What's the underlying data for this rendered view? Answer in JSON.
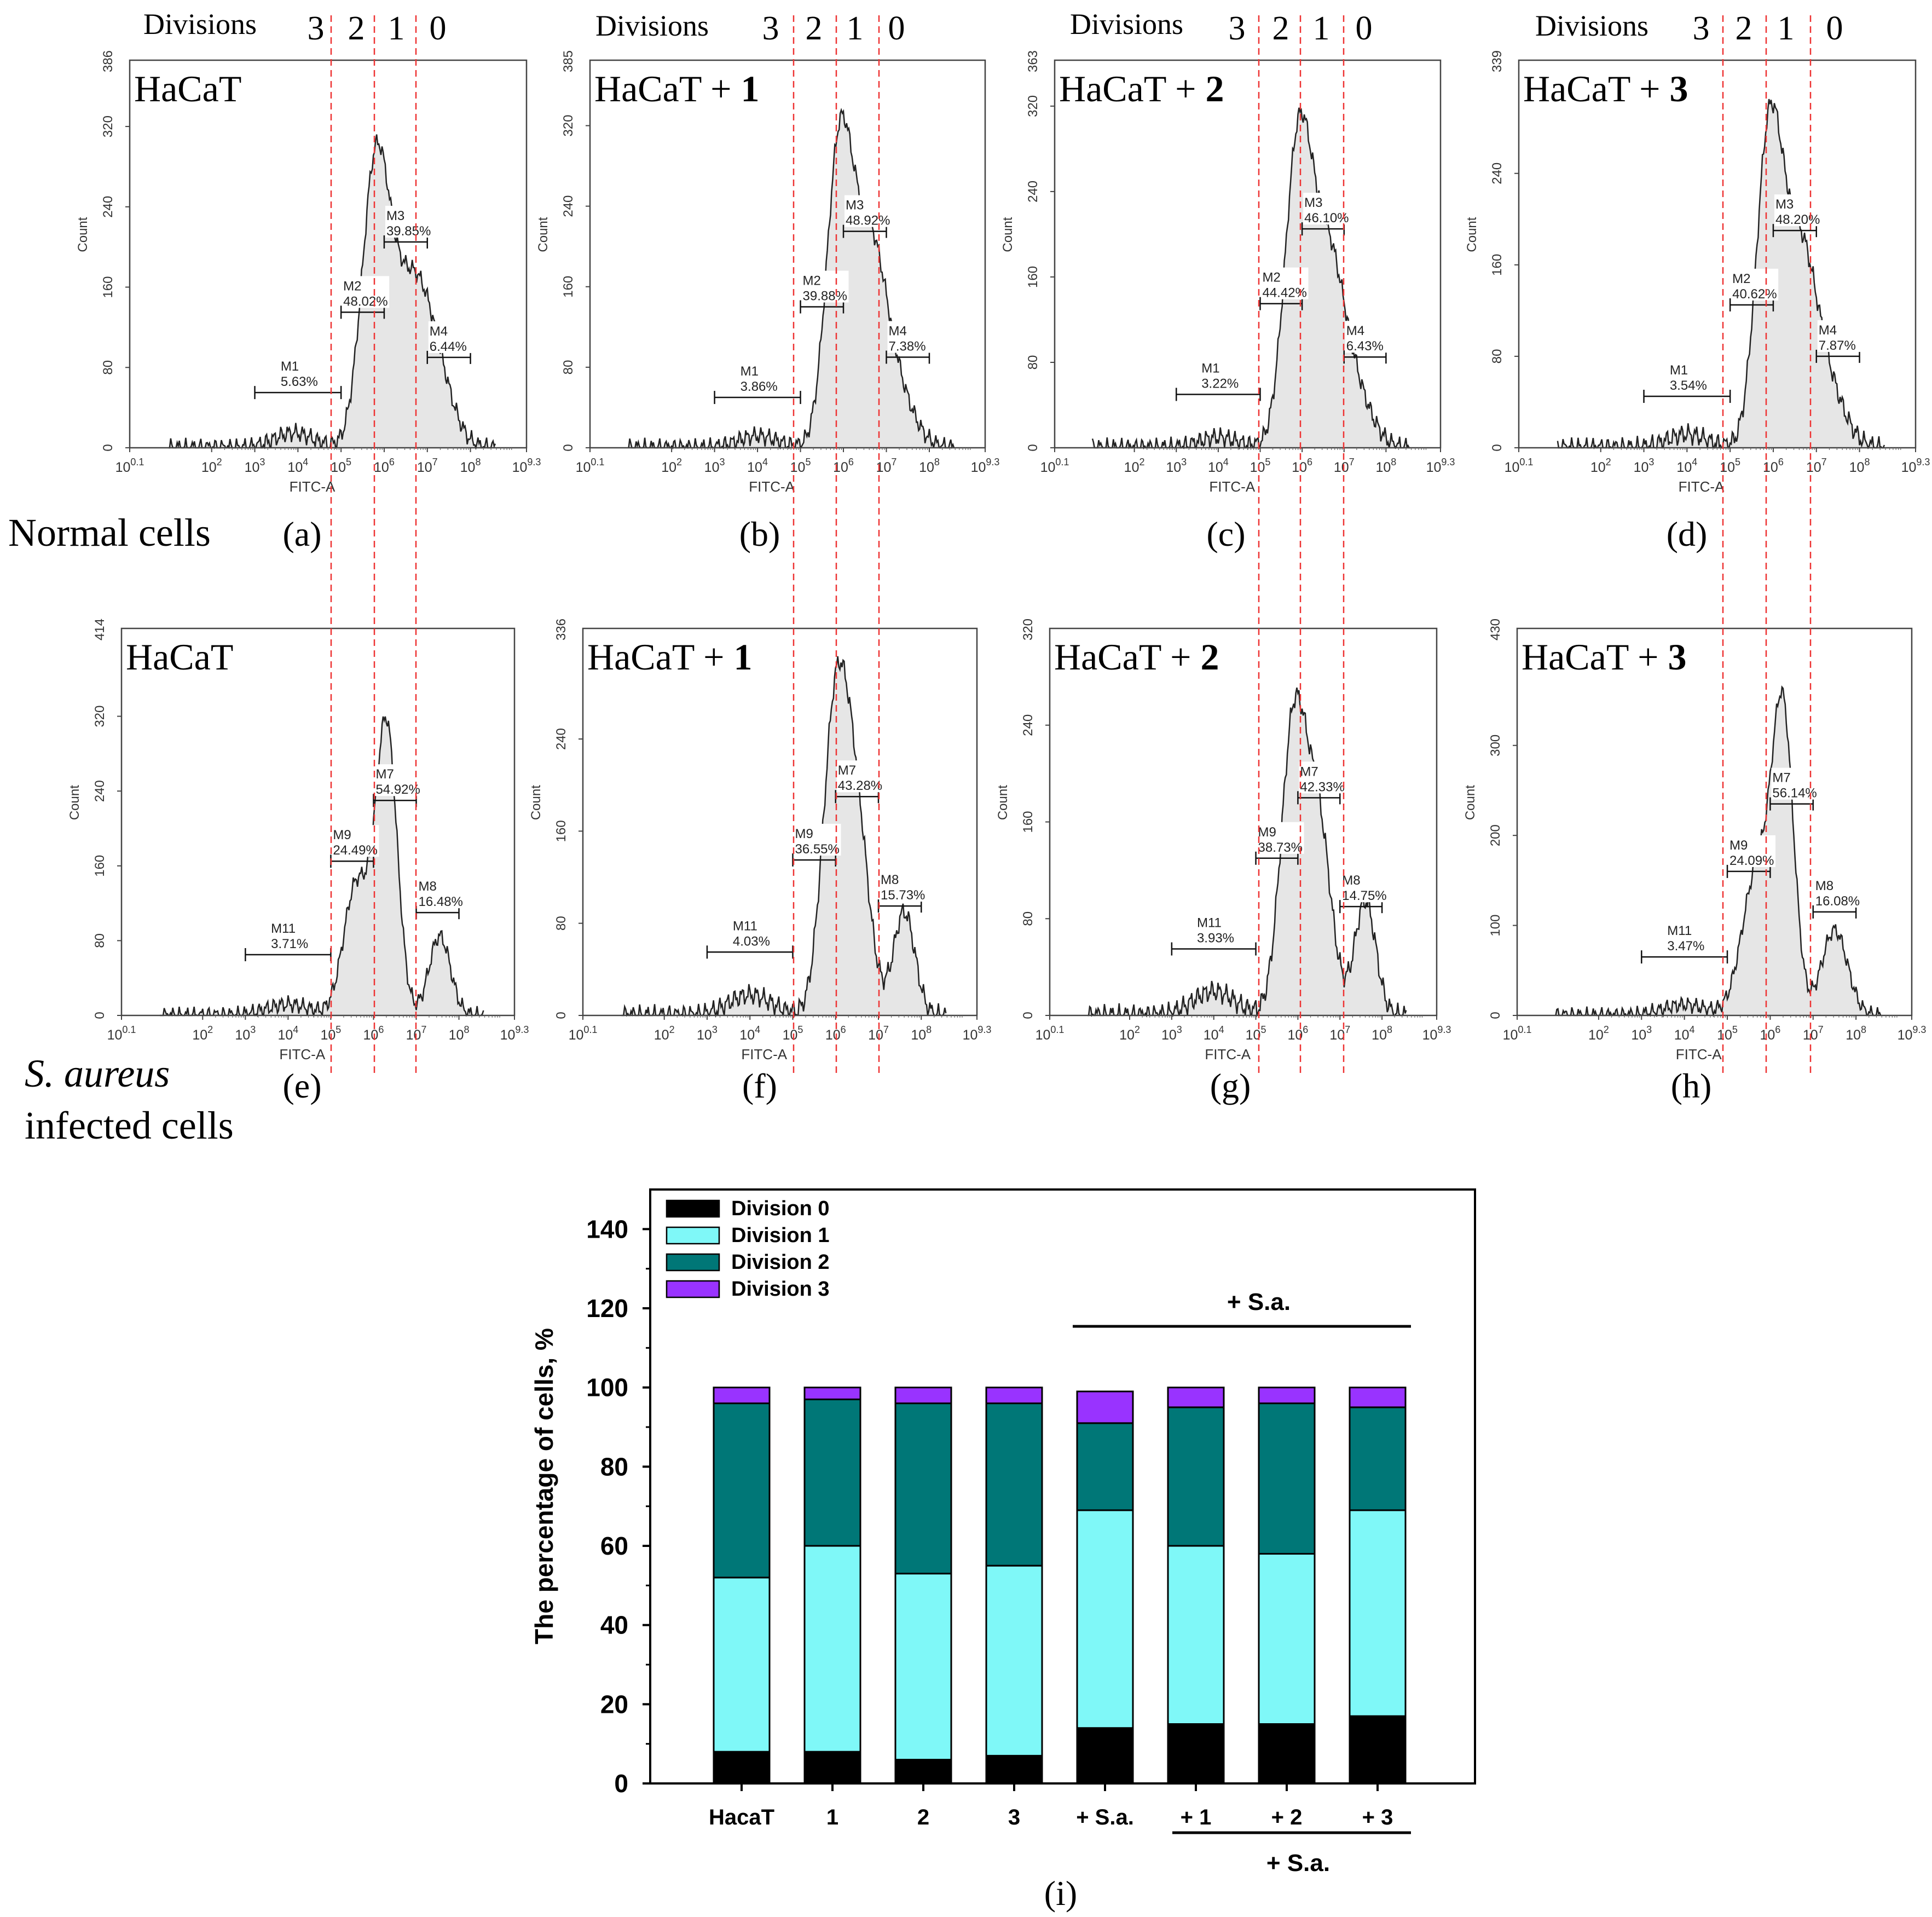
{
  "figure_labels": {
    "divisions": "Divisions",
    "division_numbers": [
      "3",
      "2",
      "1",
      "0"
    ],
    "row1_label": "Normal cells",
    "row2_label_line1": "S. aureus",
    "row2_label_line2": "infected cells"
  },
  "chart_data": [
    {
      "type": "histogram",
      "panel": "(a)",
      "title": "HaCaT",
      "title_bold": "",
      "xlabel": "FITC-A",
      "ylabel": "Count",
      "ymax": 386,
      "yticks": [
        0,
        80,
        160,
        240,
        320
      ],
      "xticks": [
        "10^0.1",
        "10^2",
        "10^3",
        "10^4",
        "10^5",
        "10^6",
        "10^7",
        "10^8",
        "10^9.3"
      ],
      "gates": [
        {
          "name": "M1",
          "pct": "5.63%",
          "from": 3,
          "to": 5,
          "y": 55
        },
        {
          "name": "M2",
          "pct": "48.02%",
          "from": 5,
          "to": 6,
          "y": 135
        },
        {
          "name": "M3",
          "pct": "39.85%",
          "from": 6,
          "to": 7,
          "y": 205
        },
        {
          "name": "M4",
          "pct": "6.44%",
          "from": 7,
          "to": 8,
          "y": 90
        }
      ],
      "peaks": [
        {
          "mu": 5.8,
          "sigma": 0.32,
          "amp": 270
        },
        {
          "mu": 6.6,
          "sigma": 0.45,
          "amp": 150
        },
        {
          "mu": 7.2,
          "sigma": 0.4,
          "amp": 55
        },
        {
          "mu": 3.9,
          "sigma": 0.45,
          "amp": 15
        }
      ]
    },
    {
      "type": "histogram",
      "panel": "(b)",
      "title": "HaCaT + ",
      "title_bold": "1",
      "xlabel": "FITC-A",
      "ylabel": "Count",
      "ymax": 385,
      "yticks": [
        0,
        80,
        160,
        240,
        320
      ],
      "xticks": [
        "10^0.1",
        "10^2",
        "10^3",
        "10^4",
        "10^5",
        "10^6",
        "10^7",
        "10^8",
        "10^9.3"
      ],
      "gates": [
        {
          "name": "M1",
          "pct": "3.86%",
          "from": 3,
          "to": 5,
          "y": 50
        },
        {
          "name": "M2",
          "pct": "39.88%",
          "from": 5,
          "to": 6,
          "y": 140
        },
        {
          "name": "M3",
          "pct": "48.92%",
          "from": 6,
          "to": 7,
          "y": 215
        },
        {
          "name": "M4",
          "pct": "7.38%",
          "from": 7,
          "to": 8,
          "y": 90
        }
      ],
      "peaks": [
        {
          "mu": 5.9,
          "sigma": 0.3,
          "amp": 280
        },
        {
          "mu": 6.6,
          "sigma": 0.4,
          "amp": 200
        },
        {
          "mu": 7.3,
          "sigma": 0.4,
          "amp": 40
        },
        {
          "mu": 4.0,
          "sigma": 0.45,
          "amp": 12
        }
      ]
    },
    {
      "type": "histogram",
      "panel": "(c)",
      "title": "HaCaT + ",
      "title_bold": "2",
      "xlabel": "FITC-A",
      "ylabel": "Count",
      "ymax": 363,
      "yticks": [
        0,
        80,
        160,
        240,
        320
      ],
      "xticks": [
        "10^0.1",
        "10^2",
        "10^3",
        "10^4",
        "10^5",
        "10^6",
        "10^7",
        "10^8",
        "10^9.3"
      ],
      "gates": [
        {
          "name": "M1",
          "pct": "3.22%",
          "from": 3,
          "to": 5,
          "y": 50
        },
        {
          "name": "M2",
          "pct": "44.42%",
          "from": 5,
          "to": 6,
          "y": 135
        },
        {
          "name": "M3",
          "pct": "46.10%",
          "from": 6,
          "to": 7,
          "y": 205
        },
        {
          "name": "M4",
          "pct": "6.43%",
          "from": 7,
          "to": 8,
          "y": 85
        }
      ],
      "peaks": [
        {
          "mu": 5.9,
          "sigma": 0.32,
          "amp": 270
        },
        {
          "mu": 6.6,
          "sigma": 0.4,
          "amp": 175
        },
        {
          "mu": 7.3,
          "sigma": 0.4,
          "amp": 40
        },
        {
          "mu": 4.0,
          "sigma": 0.45,
          "amp": 10
        }
      ]
    },
    {
      "type": "histogram",
      "panel": "(d)",
      "title": "HaCaT + ",
      "title_bold": "3",
      "xlabel": "FITC-A",
      "ylabel": "Count",
      "ymax": 339,
      "yticks": [
        0,
        80,
        160,
        240
      ],
      "xticks": [
        "10^0.1",
        "10^2",
        "10^3",
        "10^4",
        "10^5",
        "10^6",
        "10^7",
        "10^8",
        "10^9.3"
      ],
      "gates": [
        {
          "name": "M1",
          "pct": "3.54%",
          "from": 3,
          "to": 5,
          "y": 45
        },
        {
          "name": "M2",
          "pct": "40.62%",
          "from": 5,
          "to": 6,
          "y": 125
        },
        {
          "name": "M3",
          "pct": "48.20%",
          "from": 6,
          "to": 7,
          "y": 190
        },
        {
          "name": "M4",
          "pct": "7.87%",
          "from": 7,
          "to": 8,
          "y": 80
        }
      ],
      "peaks": [
        {
          "mu": 5.9,
          "sigma": 0.3,
          "amp": 260
        },
        {
          "mu": 6.6,
          "sigma": 0.4,
          "amp": 170
        },
        {
          "mu": 7.3,
          "sigma": 0.4,
          "amp": 40
        },
        {
          "mu": 4.0,
          "sigma": 0.45,
          "amp": 12
        }
      ]
    },
    {
      "type": "histogram",
      "panel": "(e)",
      "title": "HaCaT",
      "title_bold": "",
      "xlabel": "FITC-A",
      "ylabel": "Count",
      "ymax": 414,
      "yticks": [
        0,
        80,
        160,
        240,
        320
      ],
      "xticks": [
        "10^0.1",
        "10^2",
        "10^3",
        "10^4",
        "10^5",
        "10^6",
        "10^7",
        "10^8",
        "10^9.3"
      ],
      "gates": [
        {
          "name": "M11",
          "pct": "3.71%",
          "from": 3,
          "to": 5,
          "y": 65
        },
        {
          "name": "M9",
          "pct": "24.49%",
          "from": 5,
          "to": 6,
          "y": 165
        },
        {
          "name": "M7",
          "pct": "54.92%",
          "from": 6,
          "to": 7,
          "y": 230
        },
        {
          "name": "M8",
          "pct": "16.48%",
          "from": 7,
          "to": 8,
          "y": 110
        }
      ],
      "peaks": [
        {
          "mu": 6.3,
          "sigma": 0.25,
          "amp": 310
        },
        {
          "mu": 5.6,
          "sigma": 0.3,
          "amp": 140
        },
        {
          "mu": 7.55,
          "sigma": 0.25,
          "amp": 85
        },
        {
          "mu": 4.0,
          "sigma": 0.5,
          "amp": 12
        }
      ]
    },
    {
      "type": "histogram",
      "panel": "(f)",
      "title": "HaCaT + ",
      "title_bold": "1",
      "xlabel": "FITC-A",
      "ylabel": "Count",
      "ymax": 336,
      "yticks": [
        0,
        80,
        160,
        240
      ],
      "xticks": [
        "10^0.1",
        "10^2",
        "10^3",
        "10^4",
        "10^5",
        "10^6",
        "10^7",
        "10^8",
        "10^9.3"
      ],
      "gates": [
        {
          "name": "M11",
          "pct": "4.03%",
          "from": 3,
          "to": 5,
          "y": 55
        },
        {
          "name": "M9",
          "pct": "36.55%",
          "from": 5,
          "to": 6,
          "y": 135
        },
        {
          "name": "M7",
          "pct": "43.28%",
          "from": 6,
          "to": 7,
          "y": 190
        },
        {
          "name": "M8",
          "pct": "15.73%",
          "from": 7,
          "to": 8,
          "y": 95
        }
      ],
      "peaks": [
        {
          "mu": 6.0,
          "sigma": 0.3,
          "amp": 260
        },
        {
          "mu": 6.5,
          "sigma": 0.3,
          "amp": 150
        },
        {
          "mu": 7.6,
          "sigma": 0.25,
          "amp": 90
        },
        {
          "mu": 4.0,
          "sigma": 0.5,
          "amp": 18
        }
      ]
    },
    {
      "type": "histogram",
      "panel": "(g)",
      "title": "HaCaT + ",
      "title_bold": "2",
      "xlabel": "FITC-A",
      "ylabel": "Count",
      "ymax": 320,
      "yticks": [
        0,
        80,
        160,
        240
      ],
      "xticks": [
        "10^0.1",
        "10^2",
        "10^3",
        "10^4",
        "10^5",
        "10^6",
        "10^7",
        "10^8",
        "10^9.3"
      ],
      "gates": [
        {
          "name": "M11",
          "pct": "3.93%",
          "from": 3,
          "to": 5,
          "y": 55
        },
        {
          "name": "M9",
          "pct": "38.73%",
          "from": 5,
          "to": 6,
          "y": 130
        },
        {
          "name": "M7",
          "pct": "42.33%",
          "from": 6,
          "to": 7,
          "y": 180
        },
        {
          "name": "M8",
          "pct": "14.75%",
          "from": 7,
          "to": 8,
          "y": 90
        }
      ],
      "peaks": [
        {
          "mu": 5.9,
          "sigma": 0.3,
          "amp": 240
        },
        {
          "mu": 6.5,
          "sigma": 0.3,
          "amp": 150
        },
        {
          "mu": 7.6,
          "sigma": 0.25,
          "amp": 95
        },
        {
          "mu": 4.0,
          "sigma": 0.5,
          "amp": 20
        }
      ]
    },
    {
      "type": "histogram",
      "panel": "(h)",
      "title": "HaCaT + ",
      "title_bold": "3",
      "xlabel": "FITC-A",
      "ylabel": "Count",
      "ymax": 430,
      "yticks": [
        0,
        100,
        200,
        300
      ],
      "xticks": [
        "10^0.1",
        "10^2",
        "10^3",
        "10^4",
        "10^5",
        "10^6",
        "10^7",
        "10^8",
        "10^9.3"
      ],
      "gates": [
        {
          "name": "M11",
          "pct": "3.47%",
          "from": 3,
          "to": 5,
          "y": 65
        },
        {
          "name": "M9",
          "pct": "24.09%",
          "from": 5,
          "to": 6,
          "y": 160
        },
        {
          "name": "M7",
          "pct": "56.14%",
          "from": 6,
          "to": 7,
          "y": 235
        },
        {
          "name": "M8",
          "pct": "16.08%",
          "from": 7,
          "to": 8,
          "y": 115
        }
      ],
      "peaks": [
        {
          "mu": 6.3,
          "sigma": 0.25,
          "amp": 320
        },
        {
          "mu": 5.7,
          "sigma": 0.35,
          "amp": 160
        },
        {
          "mu": 7.5,
          "sigma": 0.3,
          "amp": 95
        },
        {
          "mu": 4.0,
          "sigma": 0.5,
          "amp": 12
        }
      ]
    },
    {
      "type": "bar",
      "stacked": true,
      "panel": "(i)",
      "title": "",
      "xlabel": "",
      "ylabel": "The percentage of cells, %",
      "ylim": [
        0,
        150
      ],
      "yticks": [
        0,
        20,
        40,
        60,
        80,
        100,
        120,
        140
      ],
      "categories": [
        "HacaT",
        "1",
        "2",
        "3",
        "+ S.a.",
        "+ 1",
        "+ 2",
        "+ 3"
      ],
      "series": [
        {
          "name": "Division 0",
          "color": "#000000",
          "values": [
            8,
            8,
            6,
            7,
            14,
            15,
            15,
            17
          ]
        },
        {
          "name": "Division 1",
          "color": "#7ff8f8",
          "values": [
            44,
            52,
            47,
            48,
            55,
            45,
            43,
            52
          ]
        },
        {
          "name": "Division 2",
          "color": "#007777",
          "values": [
            44,
            37,
            43,
            41,
            22,
            35,
            38,
            26
          ]
        },
        {
          "name": "Division 3",
          "color": "#9933ff",
          "values": [
            4,
            3,
            4,
            4,
            8,
            5,
            4,
            5
          ]
        }
      ],
      "annotations": [
        "+ S.a.",
        "+ S.a."
      ]
    }
  ]
}
